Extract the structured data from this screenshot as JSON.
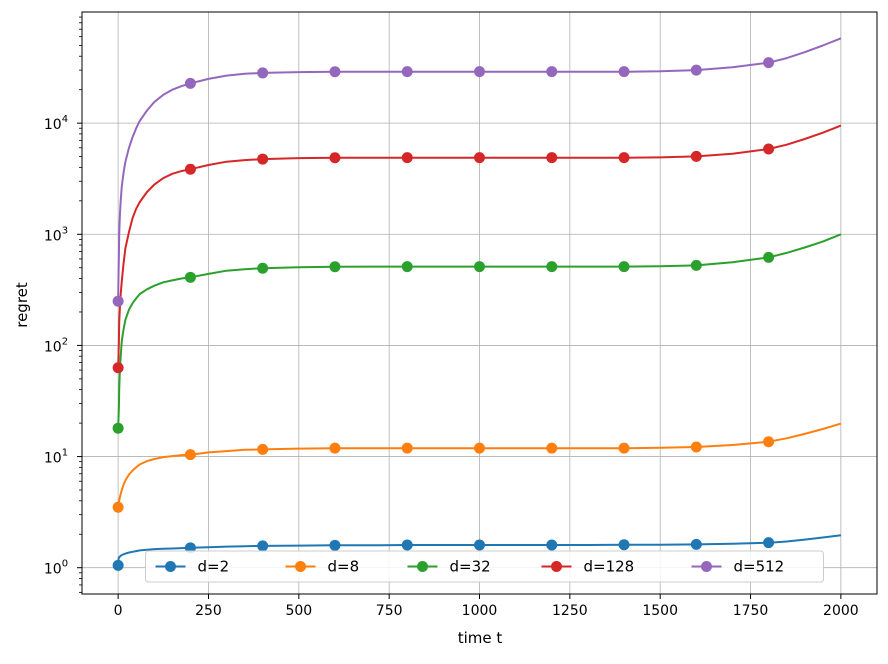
{
  "chart_data": {
    "type": "line",
    "title": "",
    "xlabel": "time t",
    "ylabel": "regret",
    "xlim": [
      -100,
      2100
    ],
    "ylim": [
      0.58,
      100000
    ],
    "yscale": "log",
    "grid": true,
    "legend_placement": "lower-center",
    "legend_columns": 5,
    "x_ticks": [
      0,
      250,
      500,
      750,
      1000,
      1250,
      1500,
      1750,
      2000
    ],
    "x_tick_labels": [
      "0",
      "250",
      "500",
      "750",
      "1000",
      "1250",
      "1500",
      "1750",
      "2000"
    ],
    "y_ticks": [
      1,
      10,
      100,
      1000,
      10000
    ],
    "y_tick_labels": [
      {
        "base": "10",
        "exp": "0"
      },
      {
        "base": "10",
        "exp": "1"
      },
      {
        "base": "10",
        "exp": "2"
      },
      {
        "base": "10",
        "exp": "3"
      },
      {
        "base": "10",
        "exp": "4"
      }
    ],
    "x": [
      0,
      1,
      2,
      3,
      5,
      7,
      10,
      15,
      20,
      30,
      40,
      50,
      60,
      80,
      100,
      125,
      150,
      175,
      200,
      250,
      300,
      350,
      400,
      500,
      600,
      700,
      800,
      900,
      1000,
      1100,
      1200,
      1300,
      1400,
      1500,
      1600,
      1700,
      1800,
      1850,
      1900,
      1950,
      2000
    ],
    "marker_x": [
      0,
      200,
      400,
      600,
      800,
      1000,
      1200,
      1400,
      1600,
      1800
    ],
    "series": [
      {
        "name": "d=2",
        "color": "#1f77b4",
        "values": [
          1.05,
          1.2,
          1.22,
          1.24,
          1.26,
          1.28,
          1.3,
          1.32,
          1.34,
          1.37,
          1.39,
          1.41,
          1.43,
          1.45,
          1.47,
          1.48,
          1.49,
          1.5,
          1.51,
          1.53,
          1.55,
          1.56,
          1.57,
          1.58,
          1.59,
          1.59,
          1.6,
          1.6,
          1.6,
          1.6,
          1.6,
          1.6,
          1.61,
          1.61,
          1.62,
          1.64,
          1.68,
          1.72,
          1.79,
          1.87,
          1.96
        ]
      },
      {
        "name": "d=8",
        "color": "#ff7f0e",
        "values": [
          3.5,
          3.6,
          3.8,
          4.0,
          4.3,
          4.6,
          5.0,
          5.6,
          6.1,
          6.9,
          7.5,
          8.0,
          8.5,
          9.1,
          9.5,
          9.9,
          10.1,
          10.3,
          10.4,
          10.9,
          11.2,
          11.5,
          11.6,
          11.8,
          11.9,
          11.9,
          11.9,
          11.9,
          11.9,
          11.9,
          11.9,
          11.9,
          11.9,
          12.0,
          12.2,
          12.7,
          13.6,
          14.6,
          16.0,
          17.7,
          19.8
        ]
      },
      {
        "name": "d=32",
        "color": "#2ca02c",
        "values": [
          18,
          22,
          28,
          40,
          60,
          80,
          110,
          140,
          170,
          210,
          240,
          265,
          290,
          320,
          345,
          370,
          385,
          400,
          410,
          440,
          470,
          485,
          495,
          505,
          510,
          512,
          512,
          512,
          512,
          512,
          512,
          512,
          512,
          515,
          525,
          560,
          620,
          680,
          760,
          860,
          1000
        ]
      },
      {
        "name": "d=128",
        "color": "#d62728",
        "values": [
          63,
          80,
          110,
          160,
          220,
          290,
          380,
          550,
          750,
          1050,
          1400,
          1700,
          1950,
          2400,
          2800,
          3200,
          3500,
          3700,
          3850,
          4200,
          4500,
          4650,
          4750,
          4850,
          4880,
          4890,
          4890,
          4890,
          4890,
          4890,
          4890,
          4890,
          4890,
          4920,
          5020,
          5300,
          5850,
          6400,
          7200,
          8200,
          9500
        ]
      },
      {
        "name": "d=512",
        "color": "#9467bd",
        "values": [
          250,
          420,
          650,
          1000,
          1500,
          2000,
          2700,
          3600,
          4500,
          6000,
          7500,
          9000,
          10500,
          13000,
          15500,
          18000,
          20000,
          21500,
          22800,
          25000,
          26800,
          27800,
          28300,
          28800,
          29000,
          29050,
          29050,
          29050,
          29050,
          29050,
          29050,
          29050,
          29050,
          29300,
          30000,
          31800,
          35000,
          38500,
          43500,
          50000,
          58000
        ]
      }
    ]
  }
}
